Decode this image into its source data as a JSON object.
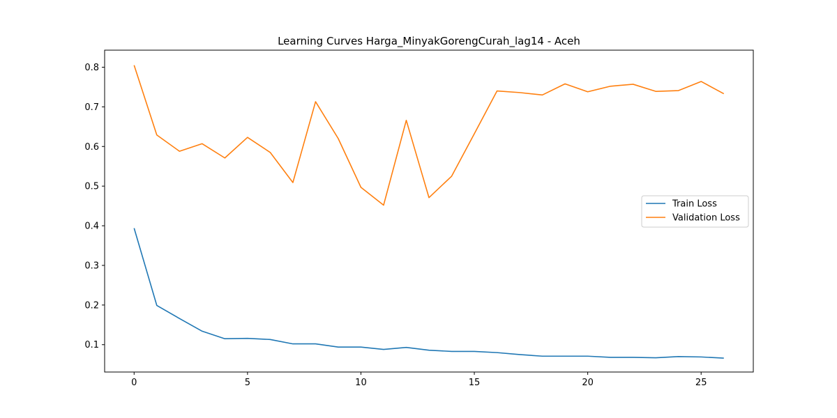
{
  "chart_data": {
    "type": "line",
    "title": "Learning Curves Harga_MinyakGorengCurah_lag14 - Aceh",
    "xlabel": "",
    "ylabel": "",
    "xlim": [
      -1.3,
      27.3
    ],
    "ylim": [
      0.031,
      0.843
    ],
    "xticks": [
      0,
      5,
      10,
      15,
      20,
      25
    ],
    "yticks": [
      0.1,
      0.2,
      0.3,
      0.4,
      0.5,
      0.6,
      0.7,
      0.8
    ],
    "x": [
      0,
      1,
      2,
      3,
      4,
      5,
      6,
      7,
      8,
      9,
      10,
      11,
      12,
      13,
      14,
      15,
      16,
      17,
      18,
      19,
      20,
      21,
      22,
      23,
      24,
      25,
      26
    ],
    "series": [
      {
        "name": "Train Loss",
        "color": "#1f77b4",
        "values": [
          0.394,
          0.199,
          0.166,
          0.134,
          0.115,
          0.116,
          0.113,
          0.102,
          0.102,
          0.094,
          0.094,
          0.088,
          0.093,
          0.086,
          0.083,
          0.083,
          0.08,
          0.075,
          0.071,
          0.071,
          0.071,
          0.068,
          0.068,
          0.067,
          0.07,
          0.069,
          0.066
        ]
      },
      {
        "name": "Validation Loss",
        "color": "#ff7f0e",
        "values": [
          0.805,
          0.629,
          0.588,
          0.607,
          0.571,
          0.623,
          0.585,
          0.509,
          0.713,
          0.62,
          0.497,
          0.452,
          0.666,
          0.471,
          0.525,
          0.632,
          0.74,
          0.736,
          0.73,
          0.758,
          0.738,
          0.752,
          0.757,
          0.739,
          0.741,
          0.764,
          0.733
        ]
      }
    ],
    "grid": false,
    "legend_position": "center-right"
  }
}
